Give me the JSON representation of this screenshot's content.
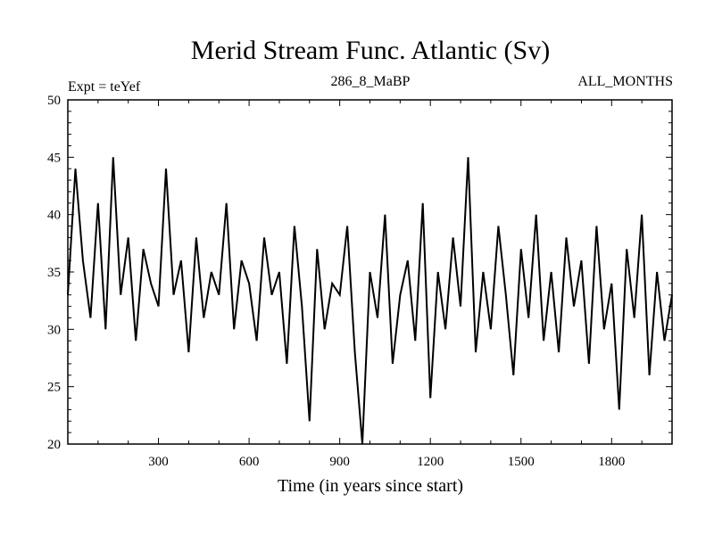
{
  "chart_data": {
    "type": "line",
    "title": "Merid Stream Func. Atlantic (Sv)",
    "subtitle_left": "Expt = teYef",
    "subtitle_center": "286_8_MaBP",
    "subtitle_right": "ALL_MONTHS",
    "xlabel": "Time (in years since start)",
    "ylabel": "",
    "xlim": [
      0,
      2000
    ],
    "ylim": [
      20,
      50
    ],
    "xticks": [
      300,
      600,
      900,
      1200,
      1500,
      1800
    ],
    "yticks": [
      20,
      25,
      30,
      35,
      40,
      45,
      50
    ],
    "grid": false,
    "series": [
      {
        "color": "#000000",
        "sampling_note_years": "approximate 25-year samples of the annual series",
        "x": [
          0,
          25,
          50,
          75,
          100,
          125,
          150,
          175,
          200,
          225,
          250,
          275,
          300,
          325,
          350,
          375,
          400,
          425,
          450,
          475,
          500,
          525,
          550,
          575,
          600,
          625,
          650,
          675,
          700,
          725,
          750,
          775,
          800,
          825,
          850,
          875,
          900,
          925,
          950,
          975,
          1000,
          1025,
          1050,
          1075,
          1100,
          1125,
          1150,
          1175,
          1200,
          1225,
          1250,
          1275,
          1300,
          1325,
          1350,
          1375,
          1400,
          1425,
          1450,
          1475,
          1500,
          1525,
          1550,
          1575,
          1600,
          1625,
          1650,
          1675,
          1700,
          1725,
          1750,
          1775,
          1800,
          1825,
          1850,
          1875,
          1900,
          1925,
          1950,
          1975,
          2000
        ],
        "values": [
          33,
          44,
          36,
          31,
          41,
          30,
          45,
          33,
          38,
          29,
          37,
          34,
          32,
          44,
          33,
          36,
          28,
          38,
          31,
          35,
          33,
          41,
          30,
          36,
          34,
          29,
          38,
          33,
          35,
          27,
          39,
          32,
          22,
          37,
          30,
          34,
          33,
          39,
          28,
          20,
          35,
          31,
          40,
          27,
          33,
          36,
          29,
          41,
          24,
          35,
          30,
          38,
          32,
          45,
          28,
          35,
          30,
          39,
          33,
          26,
          37,
          31,
          40,
          29,
          35,
          28,
          38,
          32,
          36,
          27,
          39,
          30,
          34,
          23,
          37,
          31,
          40,
          26,
          35,
          29,
          33
        ]
      }
    ]
  }
}
